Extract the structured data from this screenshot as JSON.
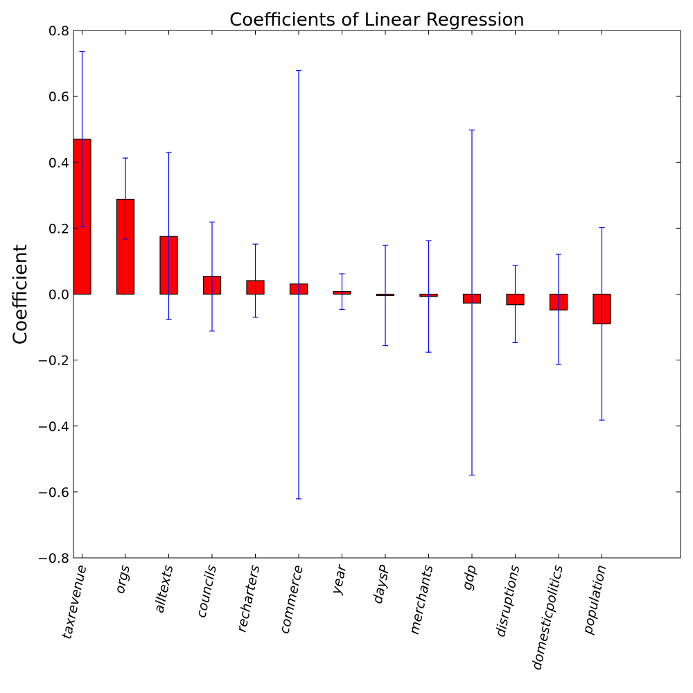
{
  "chart_data": {
    "type": "bar",
    "title": "Coefficients of Linear Regression",
    "xlabel": "",
    "ylabel": "Coefficient",
    "ylim": [
      -0.8,
      0.8
    ],
    "yticks": [
      -0.8,
      -0.6,
      -0.4,
      -0.2,
      0.0,
      0.2,
      0.4,
      0.6,
      0.8
    ],
    "ytick_labels": [
      "−0.8",
      "−0.6",
      "−0.4",
      "−0.2",
      "0.0",
      "0.2",
      "0.4",
      "0.6",
      "0.8"
    ],
    "categories": [
      "taxrevenue",
      "orgs",
      "alltexts",
      "councils",
      "recharters",
      "commerce",
      "year",
      "daysP",
      "merchants",
      "gdp",
      "disruptions",
      "domesticpolitics",
      "population"
    ],
    "values": [
      0.47,
      0.288,
      0.175,
      0.054,
      0.041,
      0.031,
      0.008,
      -0.004,
      -0.007,
      -0.027,
      -0.032,
      -0.048,
      -0.09
    ],
    "error_low": [
      0.205,
      0.167,
      -0.077,
      -0.112,
      -0.07,
      -0.621,
      -0.046,
      -0.156,
      -0.176,
      -0.549,
      -0.147,
      -0.213,
      -0.382
    ],
    "error_high": [
      0.736,
      0.413,
      0.43,
      0.219,
      0.152,
      0.679,
      0.062,
      0.148,
      0.162,
      0.498,
      0.087,
      0.121,
      0.202
    ],
    "bar_color": "#ff0000",
    "error_color": "#0000ff",
    "grid": false,
    "legend": "none"
  }
}
